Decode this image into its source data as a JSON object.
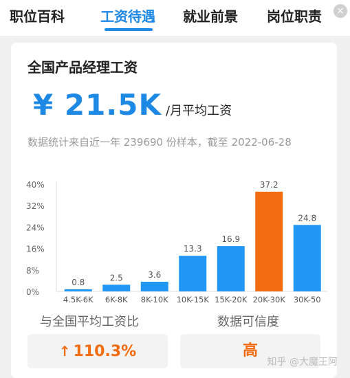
{
  "tabs": [
    {
      "label": "职位百科",
      "active": false
    },
    {
      "label": "工资待遇",
      "active": true
    },
    {
      "label": "就业前景",
      "active": false
    },
    {
      "label": "岗位职责",
      "active": false
    }
  ],
  "close_badge": "×",
  "card": {
    "title": "全国产品经理工资",
    "salary_value": "¥ 21.5K",
    "salary_unit": "/月平均工资",
    "stat_note": "数据统计来自近一年 239690 份样本，截至 2022-06-28"
  },
  "chart_data": {
    "type": "bar",
    "categories": [
      "4.5K-6K",
      "6K-8K",
      "8K-10K",
      "10K-15K",
      "15K-20K",
      "20K-30K",
      "30K-50"
    ],
    "values": [
      0.8,
      2.5,
      3.6,
      13.3,
      16.9,
      37.2,
      24.8
    ],
    "value_labels": [
      "0.8",
      "2.5",
      "3.6",
      "13.3",
      "16.9",
      "37.2",
      "24.8"
    ],
    "y_ticks": [
      "40%",
      "32%",
      "24%",
      "16%",
      "8%",
      "0%"
    ],
    "ylim": [
      0,
      40
    ],
    "highlight_index": 5,
    "colors": {
      "bar": "#2196f3",
      "highlight": "#f26b0f"
    }
  },
  "compare": {
    "label": "与全国平均工资比",
    "value": "110.3%",
    "arrow": "↑"
  },
  "confidence": {
    "label": "数据可信度",
    "value": "高"
  },
  "watermark": "知乎 @大魔王阿"
}
